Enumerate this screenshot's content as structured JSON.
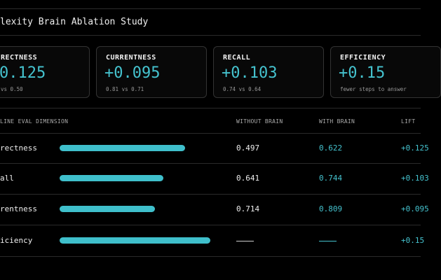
{
  "header": {
    "title": "lexity Brain Ablation Study"
  },
  "cards": [
    {
      "label": "RECTNESS",
      "value": "0.125",
      "note": "vs 0.50"
    },
    {
      "label": "CURRENTNESS",
      "value": "+0.095",
      "note": "0.81 vs 0.71"
    },
    {
      "label": "RECALL",
      "value": "+0.103",
      "note": "0.74 vs 0.64"
    },
    {
      "label": "EFFICIENCY",
      "value": "+0.15",
      "note": "fewer steps to answer"
    }
  ],
  "table": {
    "headers": [
      "LINE EVAL DIMENSION",
      "WITHOUT BRAIN",
      "WITH BRAIN",
      "LIFT"
    ],
    "rows": [
      {
        "dimension": "rectness",
        "without": 0.497,
        "with": 0.622,
        "lift": 0.125,
        "lift_label": "+0.125"
      },
      {
        "dimension": "all",
        "without": 0.641,
        "with": 0.744,
        "lift": 0.103,
        "lift_label": "+0.103"
      },
      {
        "dimension": "rentness",
        "without": 0.714,
        "with": 0.809,
        "lift": 0.095,
        "lift_label": "+0.095"
      },
      {
        "dimension": "iciency",
        "without": null,
        "with": null,
        "lift": 0.15,
        "lift_label": "+0.15"
      }
    ]
  }
}
